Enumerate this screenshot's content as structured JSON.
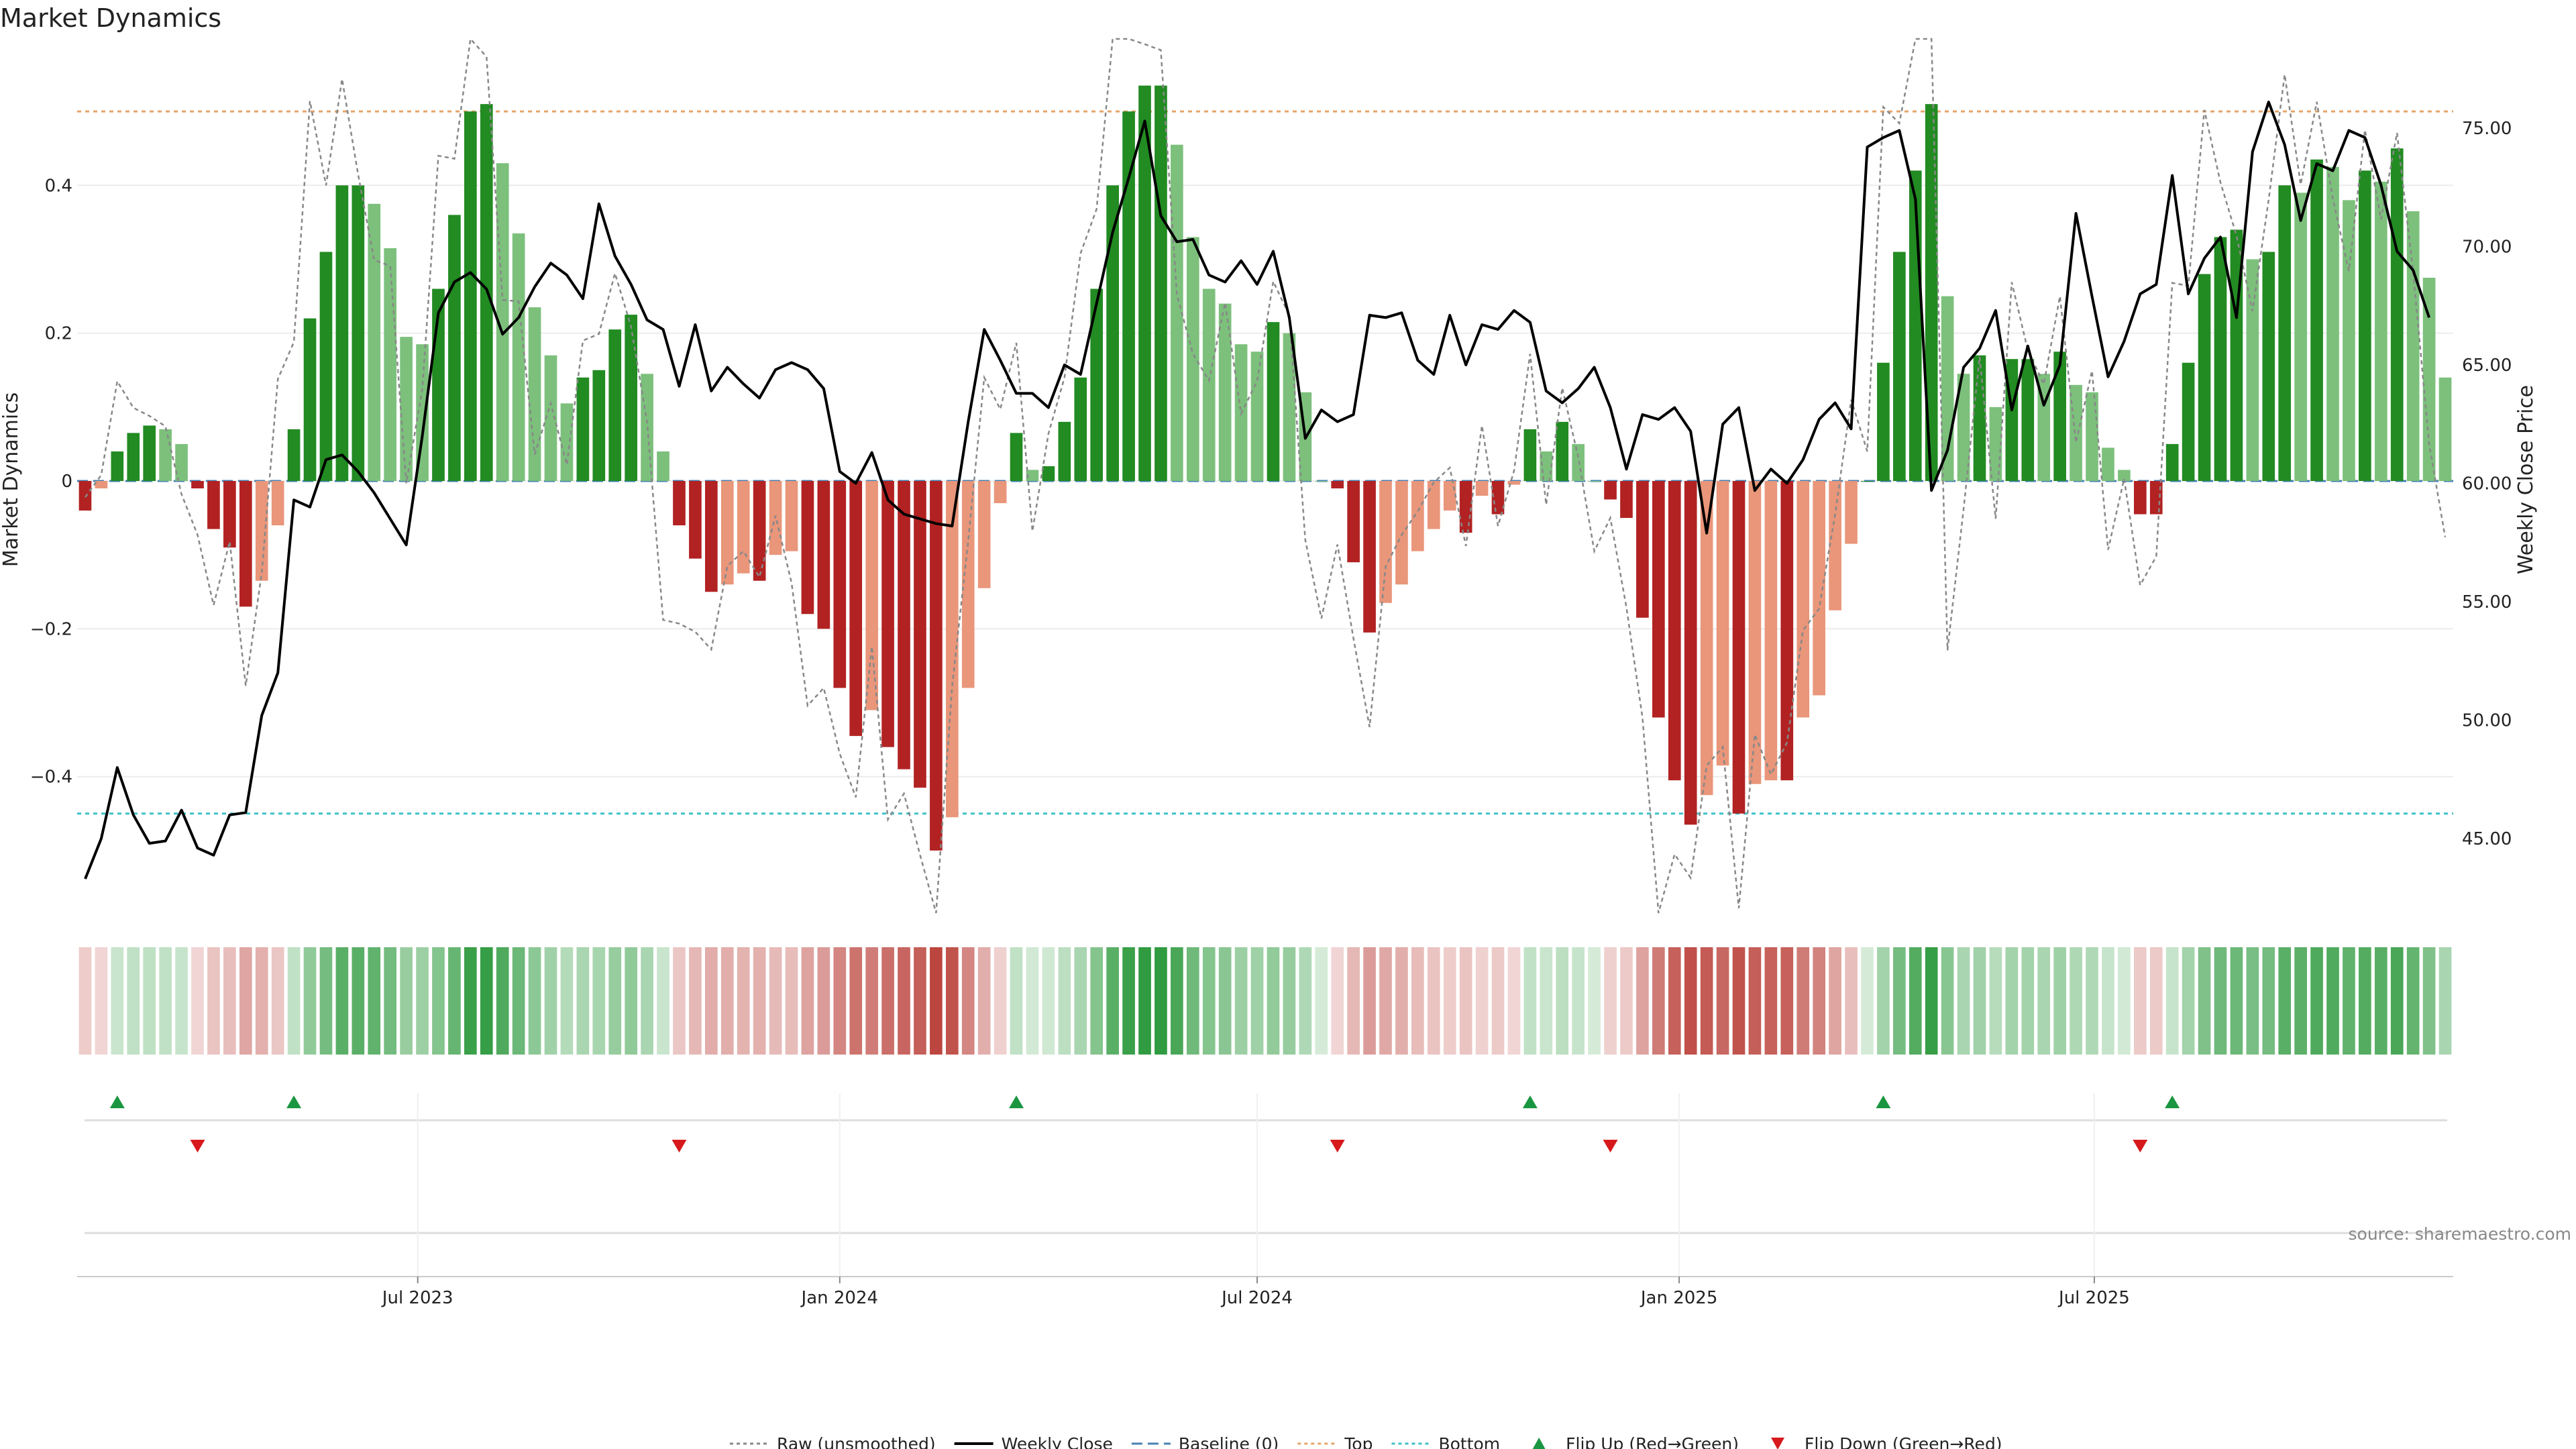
{
  "title": "Market Dynamics",
  "source": "source: sharemaestro.com",
  "colors": {
    "strong_green": "#228b22",
    "light_green": "#7cc07c",
    "strong_red": "#b22222",
    "light_red": "#e9967a",
    "price": "#000000",
    "raw": "#888888",
    "baseline": "#4682b4",
    "top": "#e5a46a",
    "bottom": "#3ec1c9",
    "flip_up": "#1a9641",
    "flip_down": "#d7191c"
  },
  "legend": [
    {
      "key": "raw",
      "label": "Raw (unsmoothed)",
      "style": "dotted-line"
    },
    {
      "key": "price",
      "label": "Weekly Close",
      "style": "solid-line"
    },
    {
      "key": "baseline",
      "label": "Baseline (0)",
      "style": "dashed-line"
    },
    {
      "key": "top",
      "label": "Top",
      "style": "dotted-line"
    },
    {
      "key": "bottom",
      "label": "Bottom",
      "style": "dotted-line"
    },
    {
      "key": "flip_up",
      "label": "Flip Up (Red→Green)",
      "style": "triangle-up"
    },
    {
      "key": "flip_down",
      "label": "Flip Down (Green→Red)",
      "style": "triangle-down"
    }
  ],
  "chart_data": {
    "type": "bar",
    "ylabel": "Market Dynamics",
    "y2label": "Weekly Close Price",
    "ylim": [
      -0.58,
      0.58
    ],
    "y2lim": [
      42.0,
      78.2
    ],
    "yticks": [
      -0.4,
      -0.2,
      0,
      0.2,
      0.4
    ],
    "ytick_labels": [
      "−0.4",
      "−0.2",
      "0",
      "0.2",
      "0.4"
    ],
    "y2ticks": [
      45,
      50,
      55,
      60,
      65,
      70,
      75
    ],
    "y2tick_labels": [
      "45.00",
      "50.00",
      "55.00",
      "60.00",
      "65.00",
      "70.00",
      "75.00"
    ],
    "xticks": [
      "Jul 2023",
      "Jan 2024",
      "Jul 2024",
      "Jan 2025",
      "Jul 2025"
    ],
    "xtick_dates": [
      "2023-07-01",
      "2024-01-01",
      "2024-07-01",
      "2025-01-01",
      "2025-07-01"
    ],
    "start_week": "2023-02-06",
    "top_line": 0.5,
    "bottom_line": -0.45,
    "baseline": 0,
    "dynamics": [
      -0.04,
      -0.01,
      0.04,
      0.065,
      0.075,
      0.07,
      0.05,
      -0.01,
      -0.065,
      -0.09,
      -0.17,
      -0.135,
      -0.06,
      0.07,
      0.22,
      0.31,
      0.4,
      0.4,
      0.375,
      0.315,
      0.195,
      0.185,
      0.26,
      0.36,
      0.5,
      0.51,
      0.43,
      0.335,
      0.235,
      0.17,
      0.105,
      0.14,
      0.15,
      0.205,
      0.225,
      0.145,
      0.04,
      -0.06,
      -0.105,
      -0.15,
      -0.14,
      -0.125,
      -0.135,
      -0.1,
      -0.095,
      -0.18,
      -0.2,
      -0.28,
      -0.345,
      -0.31,
      -0.36,
      -0.39,
      -0.415,
      -0.5,
      -0.455,
      -0.28,
      -0.145,
      -0.03,
      0.065,
      0.015,
      0.02,
      0.08,
      0.14,
      0.26,
      0.4,
      0.5,
      0.535,
      0.535,
      0.455,
      0.33,
      0.26,
      0.24,
      0.185,
      0.175,
      0.215,
      0.2,
      0.12,
      0.0,
      -0.01,
      -0.11,
      -0.205,
      -0.165,
      -0.14,
      -0.095,
      -0.065,
      -0.04,
      -0.07,
      -0.02,
      -0.045,
      -0.005,
      0.07,
      0.04,
      0.08,
      0.05,
      0.0,
      -0.025,
      -0.05,
      -0.185,
      -0.32,
      -0.405,
      -0.465,
      -0.425,
      -0.385,
      -0.45,
      -0.41,
      -0.405,
      -0.405,
      -0.32,
      -0.29,
      -0.175,
      -0.085,
      0.0,
      0.16,
      0.31,
      0.42,
      0.51,
      0.25,
      0.145,
      0.17,
      0.1,
      0.165,
      0.165,
      0.145,
      0.175,
      0.13,
      0.12,
      0.045,
      0.015,
      -0.045,
      -0.045,
      0.05,
      0.16,
      0.28,
      0.33,
      0.34,
      0.3,
      0.31,
      0.4,
      0.39,
      0.435,
      0.425,
      0.38,
      0.42,
      0.405,
      0.45,
      0.365,
      0.275,
      0.14
    ],
    "price": [
      43.3,
      45.0,
      48.0,
      46.0,
      44.8,
      44.9,
      46.2,
      44.6,
      44.3,
      46.0,
      46.1,
      50.2,
      52.0,
      59.3,
      59.0,
      61.0,
      61.2,
      60.5,
      59.6,
      58.5,
      57.4,
      62.0,
      67.2,
      68.5,
      68.9,
      68.2,
      66.3,
      67.0,
      68.3,
      69.3,
      68.8,
      67.8,
      71.8,
      69.6,
      68.4,
      66.9,
      66.5,
      64.1,
      66.7,
      63.9,
      64.9,
      64.2,
      63.6,
      64.8,
      65.1,
      64.8,
      64.0,
      60.5,
      60.0,
      61.3,
      59.3,
      58.7,
      58.5,
      58.3,
      58.2,
      62.6,
      66.5,
      65.2,
      63.8,
      63.8,
      63.2,
      65.0,
      64.6,
      67.6,
      70.6,
      72.9,
      75.3,
      71.3,
      70.2,
      70.3,
      68.8,
      68.5,
      69.4,
      68.4,
      69.8,
      67.0,
      61.9,
      63.1,
      62.6,
      62.9,
      67.1,
      67.0,
      67.2,
      65.2,
      64.6,
      67.1,
      65.0,
      66.7,
      66.5,
      67.3,
      66.8,
      63.9,
      63.4,
      64.0,
      64.9,
      63.2,
      60.6,
      62.9,
      62.7,
      63.2,
      62.2,
      57.9,
      62.5,
      63.2,
      59.7,
      60.6,
      60.0,
      61.0,
      62.7,
      63.4,
      62.3,
      74.2,
      74.6,
      74.9,
      72.0,
      59.7,
      61.4,
      64.9,
      65.7,
      67.3,
      63.1,
      65.8,
      63.3,
      65.0,
      71.4,
      67.9,
      64.5,
      66.0,
      68.0,
      68.4,
      73.0,
      68.0,
      69.5,
      70.4,
      67.0,
      74.0,
      76.1,
      74.3,
      71.1,
      73.5,
      73.2,
      74.9,
      74.6,
      72.6,
      69.8,
      69.0,
      67.0
    ]
  }
}
